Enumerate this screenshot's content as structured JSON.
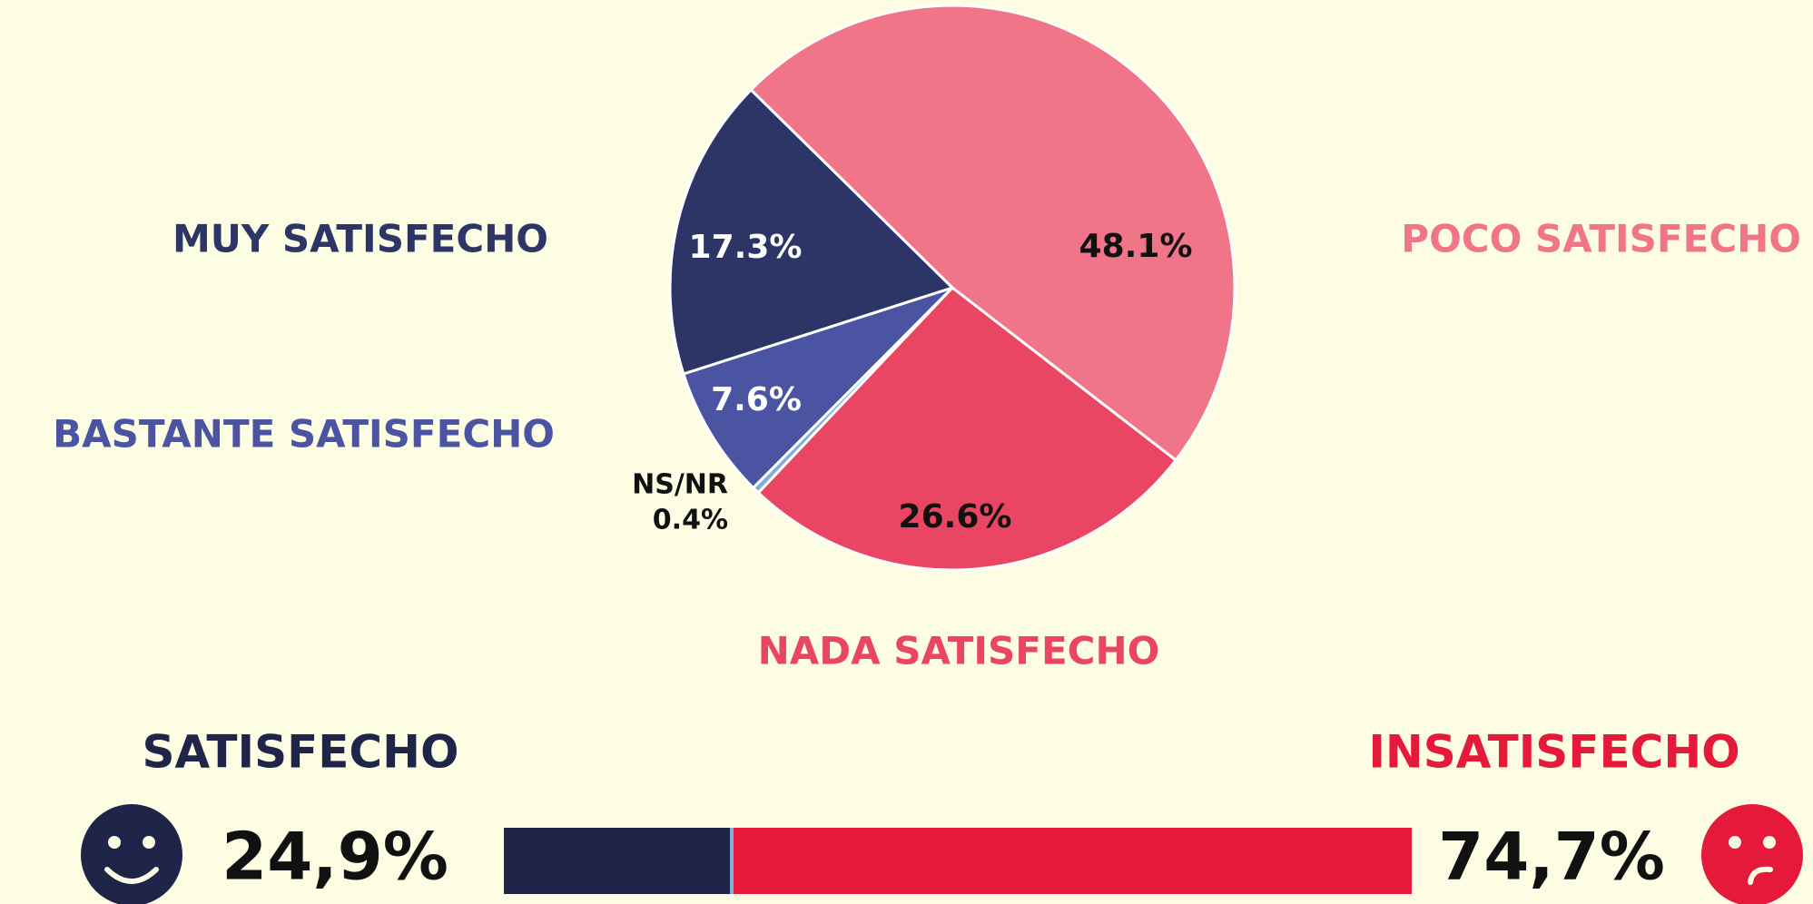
{
  "chart_data": [
    {
      "type": "pie",
      "categories": [
        "POCO SATISFECHO",
        "NADA SATISFECHO",
        "NS/NR",
        "BASTANTE SATISFECHO",
        "MUY SATISFECHO"
      ],
      "values": [
        48.1,
        26.6,
        0.4,
        7.6,
        17.3
      ],
      "value_labels": [
        "48.1%",
        "26.6%",
        "0.4%",
        "7.6%",
        "17.3%"
      ],
      "colors": [
        "#f07589",
        "#ea4562",
        "#7fb0d8",
        "#4a54a3",
        "#2d3466"
      ],
      "label_colors": [
        "#111111",
        "#111111",
        "#111111",
        "#ffffff",
        "#ffffff"
      ]
    },
    {
      "type": "stacked_bar",
      "xlim": [
        0,
        100
      ],
      "series": [
        {
          "name": "SATISFECHO",
          "color": "#1f2449",
          "values": [
            24.9
          ],
          "value_labels": [
            "24,9%"
          ]
        },
        {
          "name": "INSATISFECHO",
          "color": "#e5193a",
          "values": [
            74.7
          ],
          "value_labels": [
            "74,7%"
          ]
        }
      ]
    }
  ]
}
